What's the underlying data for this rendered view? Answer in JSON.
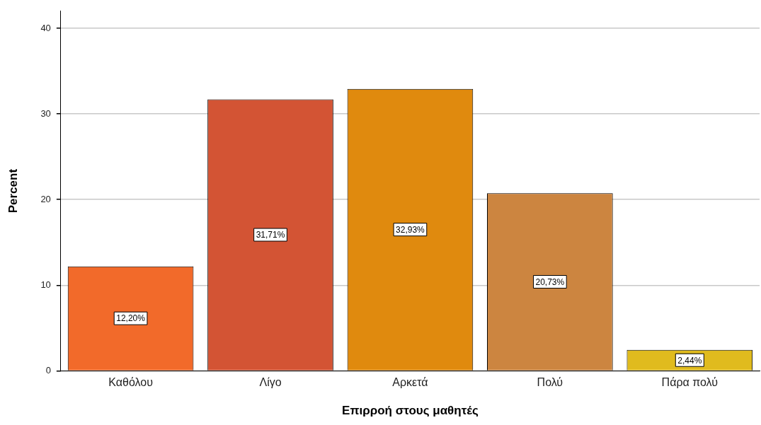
{
  "chart_data": {
    "type": "bar",
    "xlabel": "Επιρροή στους μαθητές",
    "ylabel": "Percent",
    "categories": [
      "Καθόλου",
      "Λίγο",
      "Αρκετά",
      "Πολύ",
      "Πάρα πολύ"
    ],
    "values": [
      12.2,
      31.71,
      32.93,
      20.73,
      2.44
    ],
    "colors": [
      "#f26a2a",
      "#d35434",
      "#e08a0e",
      "#cc8540",
      "#e0bb1e"
    ],
    "value_labels": [
      "12,20%",
      "31,71%",
      "32,93%",
      "20,73%",
      "2,44%"
    ],
    "ylim": [
      0,
      42
    ],
    "yticks": [
      0,
      10,
      20,
      30,
      40
    ],
    "grid": "y",
    "legend": false
  }
}
